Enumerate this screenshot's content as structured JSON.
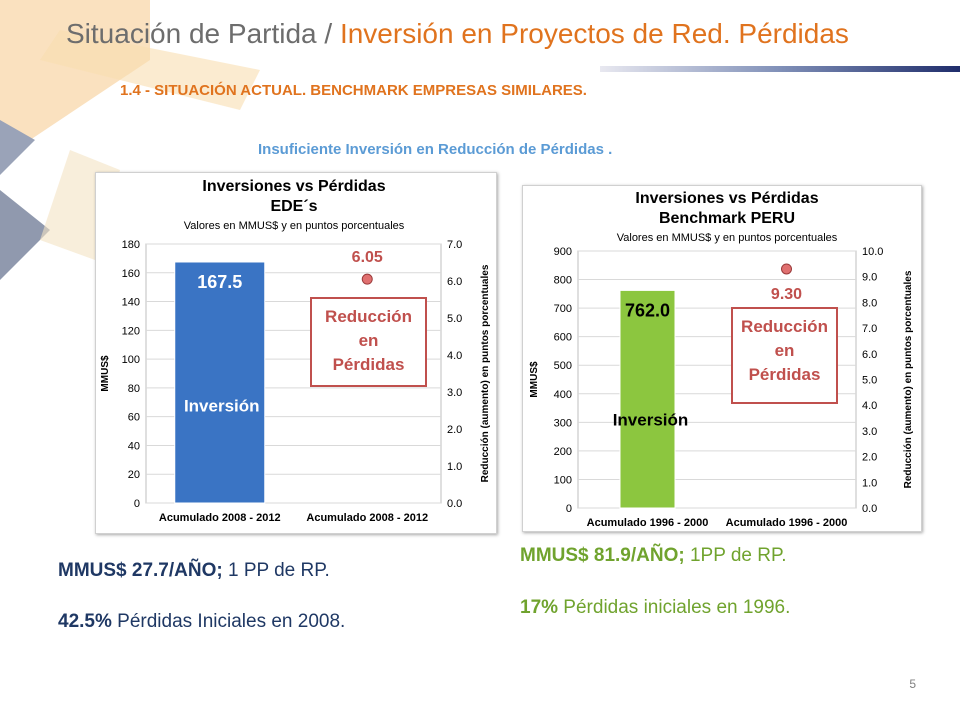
{
  "slide": {
    "title_main": "Situación de Partida /",
    "title_accent": "Inversión en Proyectos de Red. Pérdidas",
    "subtitle": "1.4 - SITUACIÓN ACTUAL. BENCHMARK EMPRESAS SIMILARES.",
    "insight": "Insuficiente Inversión en Reducción de Pérdidas .",
    "page_number": "5"
  },
  "notes_left": [
    {
      "bold": "MMUS$ 27.7/AÑO;",
      "rest": " 1 PP de RP."
    },
    {
      "bold": "42.5%",
      "rest": " Pérdidas Iniciales en 2008."
    }
  ],
  "notes_right": [
    {
      "bold": "MMUS$ 81.9/AÑO;",
      "rest": " 1PP de RP."
    },
    {
      "bold": "17%",
      "rest": " Pérdidas iniciales en 1996."
    }
  ],
  "colors": {
    "title_accent": "#e0731e",
    "insight": "#5b9bd5",
    "note_left": "#1f3864",
    "note_right": "#70a32e",
    "bar_left": "#3a74c4",
    "bar_right": "#8cc63f",
    "loss_box": "#c0504d",
    "marker": "#e07070"
  },
  "chart_data": [
    {
      "type": "bar",
      "title": "Inversiones vs Pérdidas",
      "title2": "EDE´s",
      "subtitle": "Valores en MMUS$ y en puntos porcentuales",
      "ylabel": "MMUS$",
      "y2label": "Reducción (aumento) en puntos porcentuales",
      "categories": [
        "Acumulado 2008 - 2012",
        "Acumulado 2008 - 2012"
      ],
      "ylim": [
        0,
        180
      ],
      "yticks": [
        "0",
        "20",
        "40",
        "60",
        "80",
        "100",
        "120",
        "140",
        "160",
        "180"
      ],
      "y2lim": [
        0,
        7
      ],
      "y2ticks": [
        "0.0",
        "1.0",
        "2.0",
        "3.0",
        "4.0",
        "5.0",
        "6.0",
        "7.0"
      ],
      "bar": {
        "name": "Inversión",
        "value": 167.5,
        "label": "167.5"
      },
      "point": {
        "name": "Reducción en Pérdidas",
        "value": 6.05,
        "label": "6.05"
      },
      "box_lines": [
        "Reducción",
        "en",
        "Pérdidas"
      ]
    },
    {
      "type": "bar",
      "title": "Inversiones vs Pérdidas",
      "title2": "Benchmark PERU",
      "subtitle": "Valores en MMUS$ y en puntos porcentuales",
      "ylabel": "MMUS$",
      "y2label": "Reducción (aumento) en puntos porcentuales",
      "categories": [
        "Acumulado 1996 - 2000",
        "Acumulado 1996 - 2000"
      ],
      "ylim": [
        0,
        900
      ],
      "yticks": [
        "0",
        "100",
        "200",
        "300",
        "400",
        "500",
        "600",
        "700",
        "800",
        "900"
      ],
      "y2lim": [
        0,
        10
      ],
      "y2ticks": [
        "0.0",
        "1.0",
        "2.0",
        "3.0",
        "4.0",
        "5.0",
        "6.0",
        "7.0",
        "8.0",
        "9.0",
        "10.0"
      ],
      "bar": {
        "name": "Inversión",
        "value": 762.0,
        "label": "762.0"
      },
      "point": {
        "name": "Reducción en Pérdidas",
        "value": 9.3,
        "label": "9.30"
      },
      "box_lines": [
        "Reducción",
        "en",
        "Pérdidas"
      ]
    }
  ]
}
